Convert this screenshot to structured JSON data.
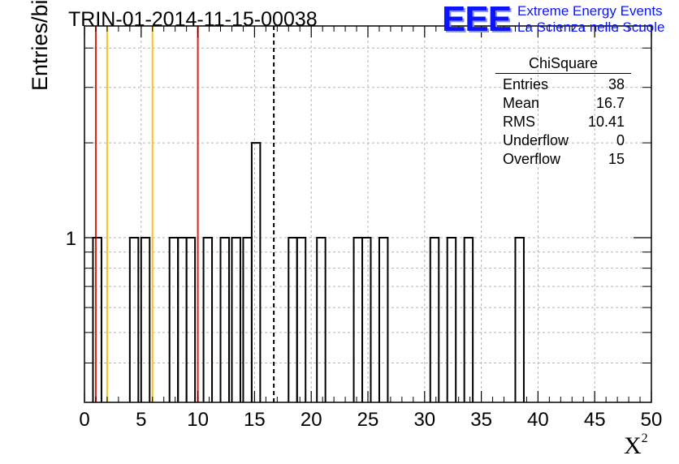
{
  "title": "TRIN-01-2014-11-15-00038",
  "logo": {
    "mark": "EEE",
    "line1": "Extreme Energy Events",
    "line2": "La Scienza nelle Scuole",
    "color": "#0a14ff"
  },
  "chart_data": {
    "type": "bar",
    "histogram": true,
    "xlabel": "X",
    "xlabel_superscript": "2",
    "ylabel": "Entries/bin",
    "xlim": [
      0,
      50
    ],
    "ylim": [
      0.3,
      4.7
    ],
    "log_y": true,
    "grid": true,
    "bin_width": 0.75,
    "x_ticks": [
      0,
      5,
      10,
      15,
      20,
      25,
      30,
      35,
      40,
      45,
      50
    ],
    "y_tick_labels": [
      {
        "value": 1,
        "label": "1"
      }
    ],
    "bins": [
      {
        "x": 0.75,
        "count": 1
      },
      {
        "x": 4.0,
        "count": 1
      },
      {
        "x": 5.0,
        "count": 1
      },
      {
        "x": 7.5,
        "count": 1
      },
      {
        "x": 8.25,
        "count": 1
      },
      {
        "x": 9.0,
        "count": 1
      },
      {
        "x": 10.5,
        "count": 1
      },
      {
        "x": 12.0,
        "count": 1
      },
      {
        "x": 13.0,
        "count": 1
      },
      {
        "x": 14.0,
        "count": 1
      },
      {
        "x": 14.75,
        "count": 2
      },
      {
        "x": 18.0,
        "count": 1
      },
      {
        "x": 18.75,
        "count": 1
      },
      {
        "x": 20.5,
        "count": 1
      },
      {
        "x": 23.75,
        "count": 1
      },
      {
        "x": 24.5,
        "count": 1
      },
      {
        "x": 26.0,
        "count": 1
      },
      {
        "x": 30.5,
        "count": 1
      },
      {
        "x": 32.0,
        "count": 1
      },
      {
        "x": 33.5,
        "count": 1
      },
      {
        "x": 38.0,
        "count": 1
      }
    ],
    "vertical_lines": [
      {
        "x": 1.0,
        "color": "#e0201b",
        "style": "solid"
      },
      {
        "x": 2.0,
        "color": "#f5c518",
        "style": "solid"
      },
      {
        "x": 6.0,
        "color": "#f5c518",
        "style": "solid"
      },
      {
        "x": 10.0,
        "color": "#e0201b",
        "style": "solid"
      },
      {
        "x": 16.7,
        "color": "#000000",
        "style": "dashed"
      }
    ],
    "stats_box": {
      "title": "ChiSquare",
      "rows": [
        {
          "label": "Entries",
          "value": "38"
        },
        {
          "label": "Mean",
          "value": "16.7"
        },
        {
          "label": "RMS",
          "value": "10.41"
        },
        {
          "label": "Underflow",
          "value": "0"
        },
        {
          "label": "Overflow",
          "value": "15"
        }
      ]
    }
  }
}
